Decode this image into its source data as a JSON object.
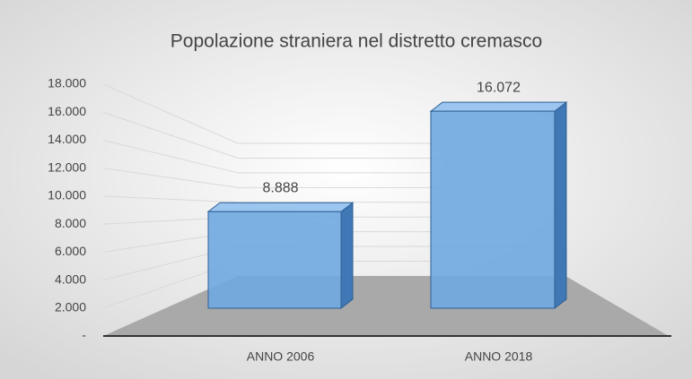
{
  "chart_data": {
    "type": "bar3d",
    "title": "Popolazione straniera nel distretto cremasco",
    "categories": [
      "ANNO 2006",
      "ANNO 2018"
    ],
    "values": [
      8888,
      16072
    ],
    "value_labels": [
      "8.888",
      "16.072"
    ],
    "color": "#6fa8e0",
    "ylim": [
      0,
      18000
    ],
    "yticks": [
      {
        "value": 0,
        "label": "-"
      },
      {
        "value": 2000,
        "label": "2.000"
      },
      {
        "value": 4000,
        "label": "4.000"
      },
      {
        "value": 6000,
        "label": "6.000"
      },
      {
        "value": 8000,
        "label": "8.000"
      },
      {
        "value": 10000,
        "label": "10.000"
      },
      {
        "value": 12000,
        "label": "12.000"
      },
      {
        "value": 14000,
        "label": "14.000"
      },
      {
        "value": 16000,
        "label": "16.000"
      },
      {
        "value": 18000,
        "label": "18.000"
      }
    ],
    "grid": true
  }
}
